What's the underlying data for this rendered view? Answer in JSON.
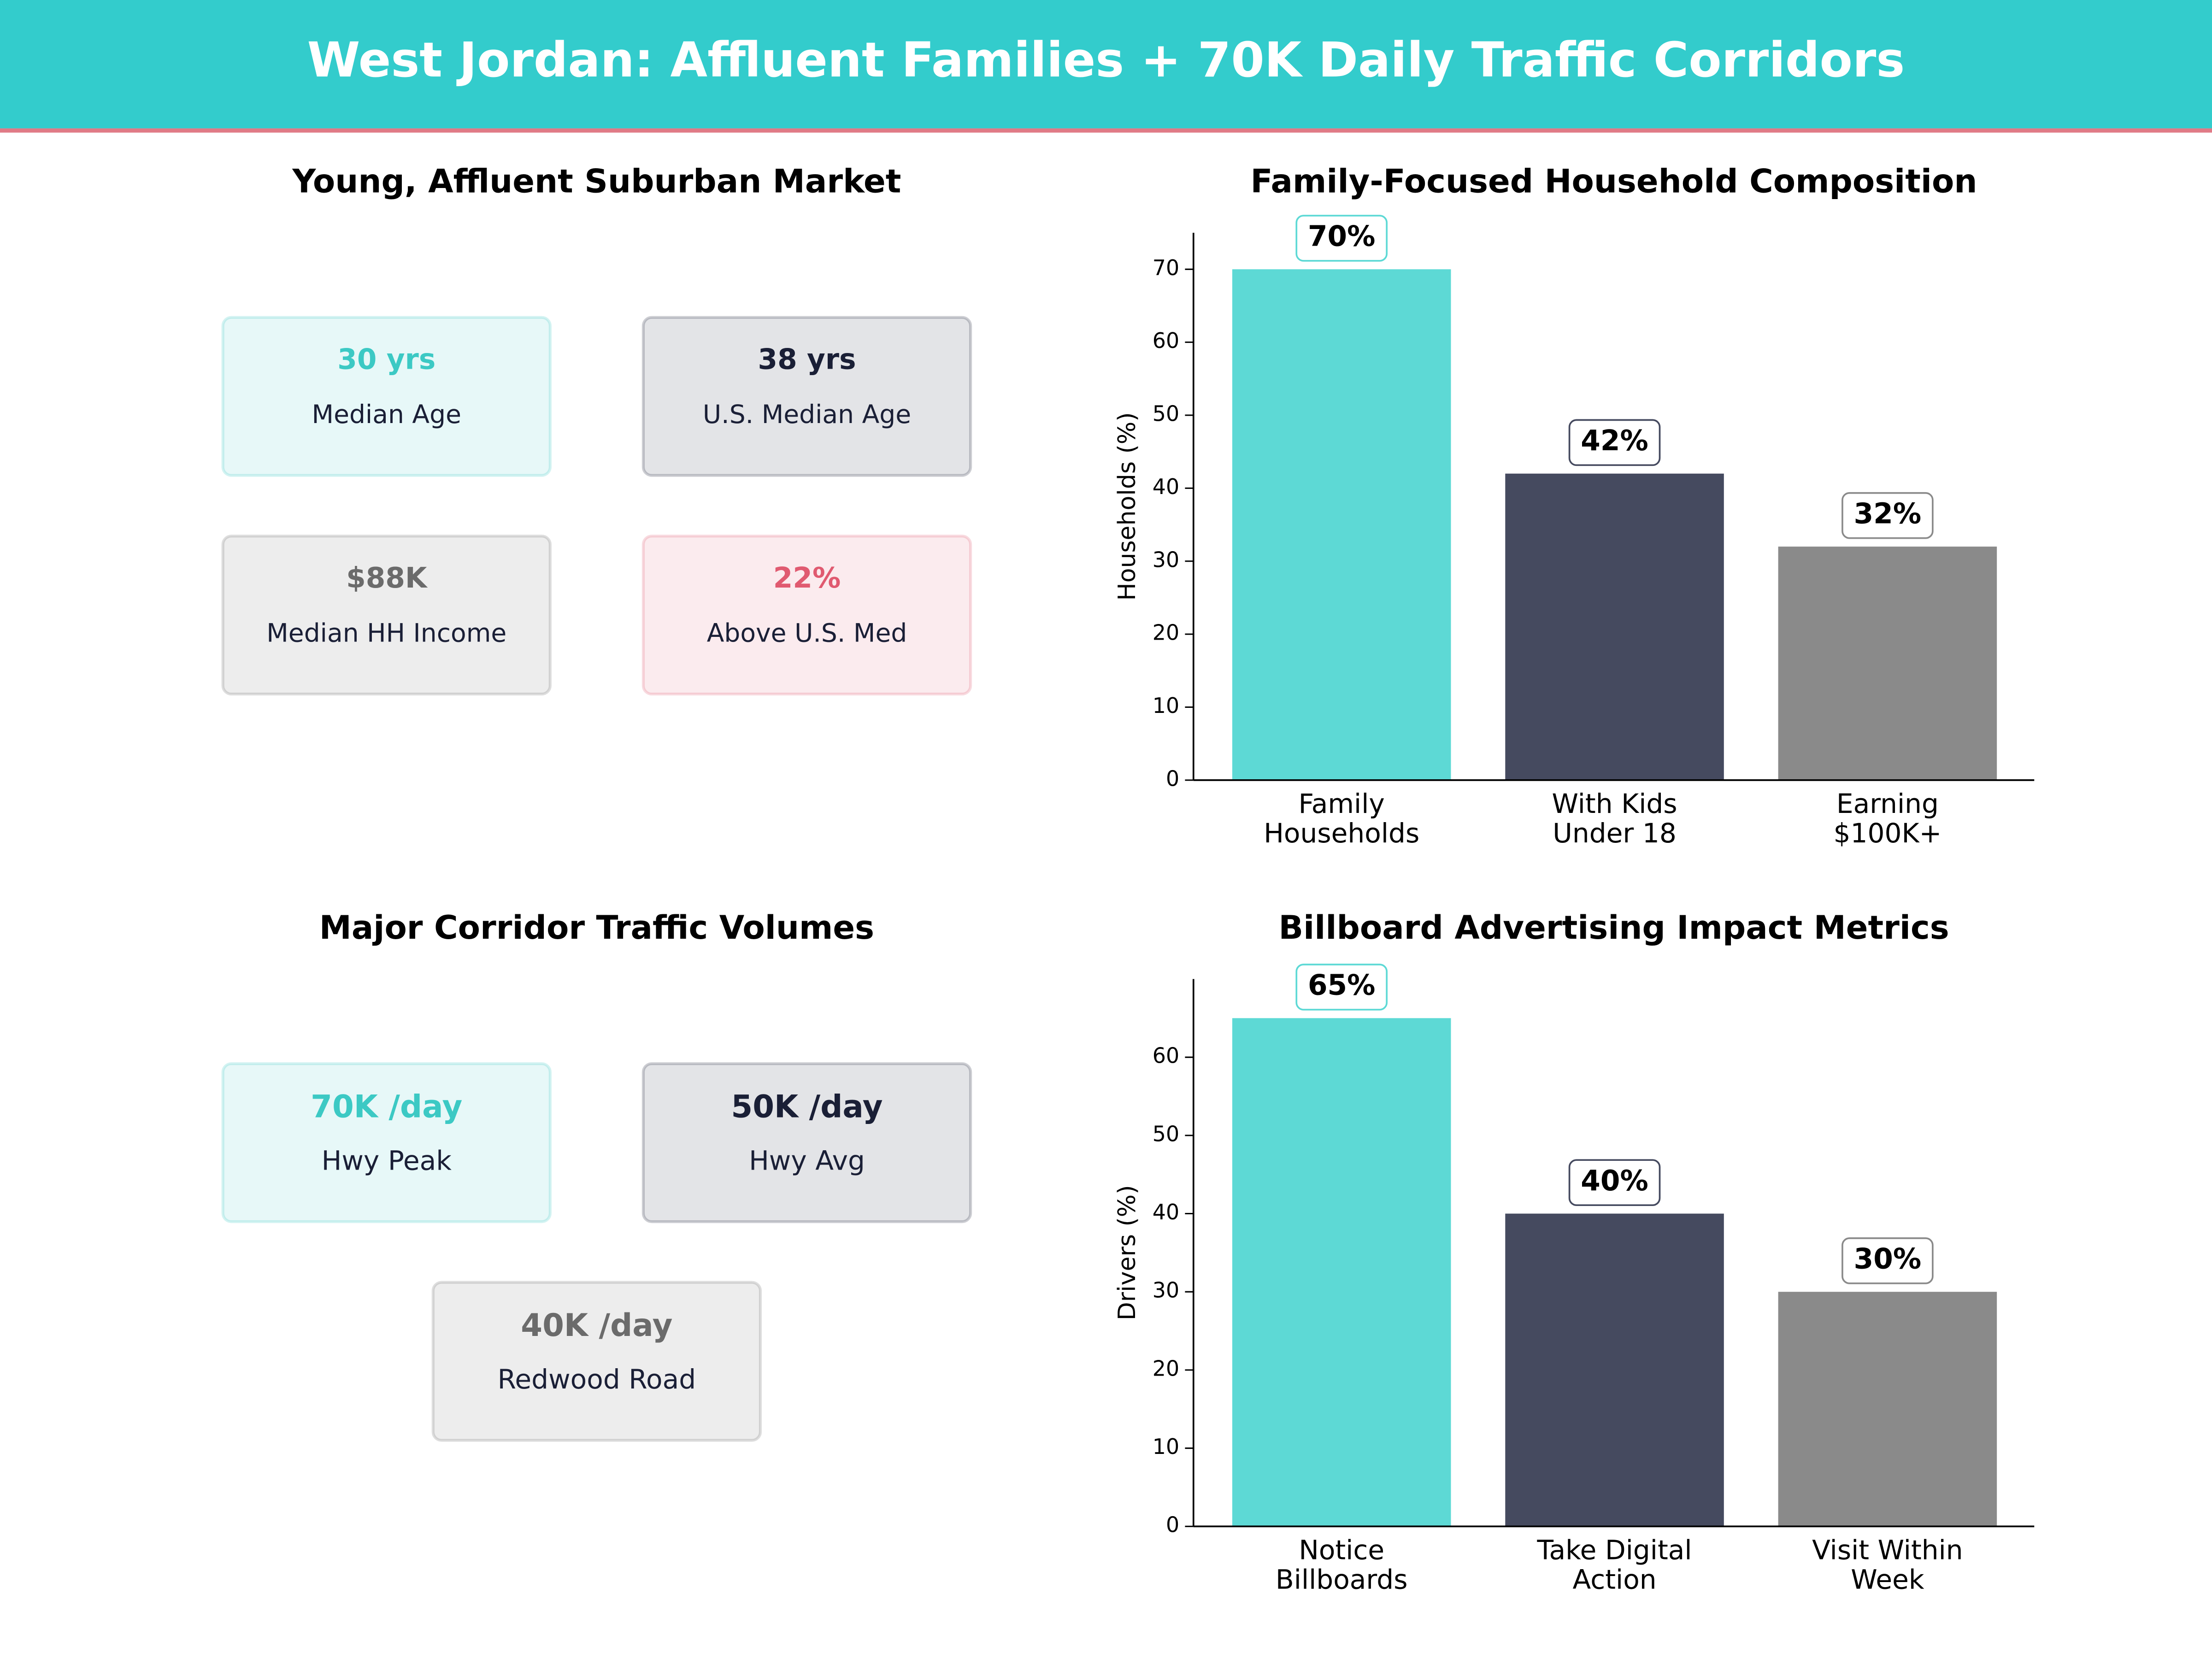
{
  "title": "West Jordan: Affluent Families + 70K Daily Traffic Corridors",
  "card_panels": [
    {
      "title": "Young, Affluent Suburban Market",
      "cards": [
        {
          "value": "30 yrs",
          "label": "Median Age",
          "color": "#3cc9c4"
        },
        {
          "value": "38 yrs",
          "label": "U.S. Median Age",
          "color": "#1a1f36"
        },
        {
          "value": "$88K",
          "label": "Median HH Income",
          "color": "#6b6b6b"
        },
        {
          "value": "22%",
          "label": "Above U.S. Med",
          "color": "#e05a70"
        }
      ]
    },
    {
      "title": "Major Corridor Traffic Volumes",
      "cards": [
        {
          "value": "70K /day",
          "label": "Hwy Peak",
          "color": "#3cc9c4"
        },
        {
          "value": "50K /day",
          "label": "Hwy Avg",
          "color": "#1a1f36"
        },
        {
          "value": "40K /day",
          "label": "Redwood Road",
          "color": "#6b6b6b"
        }
      ]
    }
  ],
  "chart_data": [
    {
      "type": "bar",
      "title": "Family-Focused Household Composition",
      "ylabel": "Households (%)",
      "categories": [
        "Family\nHouseholds",
        "With Kids\nUnder 18",
        "Earning\n$100K+"
      ],
      "values": [
        70,
        42,
        32
      ],
      "value_labels": [
        "70%",
        "42%",
        "32%"
      ],
      "colors": [
        "#5dd9d5",
        "#454a5f",
        "#8a8a8a"
      ],
      "ylim": [
        0,
        75
      ],
      "yticks": [
        0,
        10,
        20,
        30,
        40,
        50,
        60,
        70
      ]
    },
    {
      "type": "bar",
      "title": "Billboard Advertising Impact Metrics",
      "ylabel": "Drivers (%)",
      "categories": [
        "Notice\nBillboards",
        "Take Digital\nAction",
        "Visit Within\nWeek"
      ],
      "values": [
        65,
        40,
        30
      ],
      "value_labels": [
        "65%",
        "40%",
        "30%"
      ],
      "colors": [
        "#5dd9d5",
        "#454a5f",
        "#8a8a8a"
      ],
      "ylim": [
        0,
        70
      ],
      "yticks": [
        0,
        10,
        20,
        30,
        40,
        50,
        60
      ]
    }
  ]
}
